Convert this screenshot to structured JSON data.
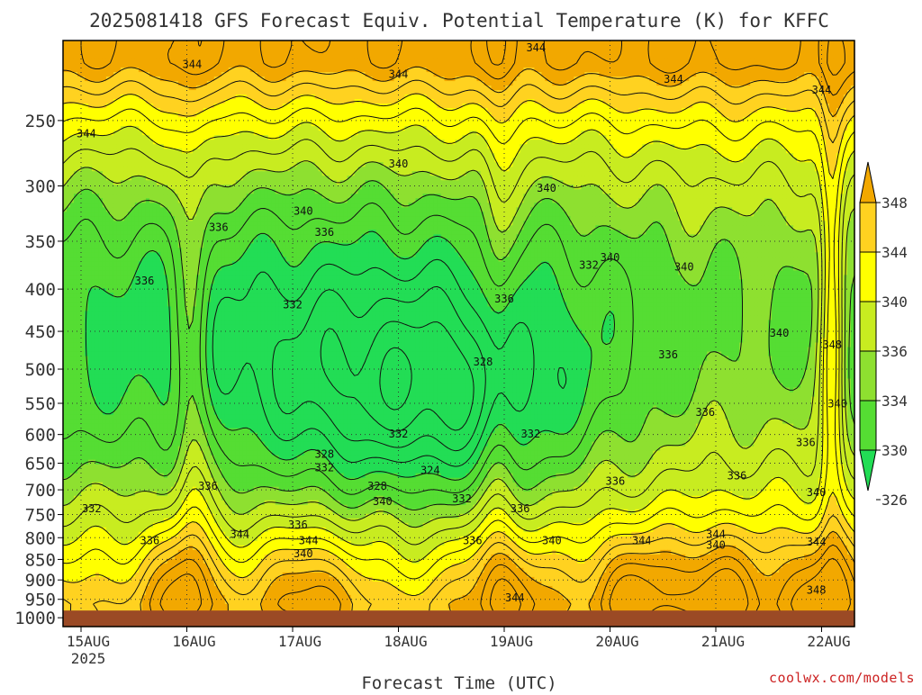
{
  "chart_data": {
    "type": "heatmap",
    "title": "2025081418 GFS Forecast Equiv. Potential Temperature (K) for KFFC",
    "xlabel": "Forecast Time (UTC)",
    "ylabel": "",
    "x_ticks": [
      "15AUG",
      "16AUG",
      "17AUG",
      "18AUG",
      "19AUG",
      "20AUG",
      "21AUG",
      "22AUG"
    ],
    "x_sub": "2025",
    "y_ticks": [
      250,
      300,
      350,
      400,
      450,
      500,
      550,
      600,
      650,
      700,
      750,
      800,
      850,
      900,
      950,
      1000
    ],
    "y_scale": "log-pressure",
    "ylim": [
      1025,
      200
    ],
    "grid": true,
    "colorbar": {
      "levels": [
        326,
        330,
        334,
        336,
        340,
        344,
        348
      ],
      "colors": [
        "#22dd55",
        "#55dd33",
        "#8ee030",
        "#c8ec20",
        "#ffff00",
        "#ffd220",
        "#f2a800"
      ]
    },
    "contour_labels": [
      {
        "x": 0.05,
        "p": 262,
        "v": "344"
      },
      {
        "x": 1.05,
        "p": 216,
        "v": "344"
      },
      {
        "x": 2.1,
        "p": 325,
        "v": "340"
      },
      {
        "x": 2.3,
        "p": 345,
        "v": "336"
      },
      {
        "x": 3.0,
        "p": 222,
        "v": "344"
      },
      {
        "x": 4.3,
        "p": 206,
        "v": "344"
      },
      {
        "x": 5.6,
        "p": 225,
        "v": "344"
      },
      {
        "x": 7.0,
        "p": 232,
        "v": "344"
      },
      {
        "x": 3.0,
        "p": 285,
        "v": "340"
      },
      {
        "x": 4.4,
        "p": 305,
        "v": "340"
      },
      {
        "x": 5.0,
        "p": 370,
        "v": "340"
      },
      {
        "x": 5.7,
        "p": 380,
        "v": "340"
      },
      {
        "x": 6.6,
        "p": 457,
        "v": "340"
      },
      {
        "x": 1.3,
        "p": 340,
        "v": "336"
      },
      {
        "x": 0.6,
        "p": 395,
        "v": "336"
      },
      {
        "x": 2.0,
        "p": 422,
        "v": "332"
      },
      {
        "x": 4.8,
        "p": 378,
        "v": "332"
      },
      {
        "x": 4.0,
        "p": 415,
        "v": "336"
      },
      {
        "x": 3.8,
        "p": 495,
        "v": "328"
      },
      {
        "x": 3.0,
        "p": 605,
        "v": "332"
      },
      {
        "x": 2.3,
        "p": 640,
        "v": "328"
      },
      {
        "x": 2.3,
        "p": 665,
        "v": "332"
      },
      {
        "x": 2.8,
        "p": 700,
        "v": "328"
      },
      {
        "x": 3.3,
        "p": 670,
        "v": "324"
      },
      {
        "x": 3.6,
        "p": 725,
        "v": "332"
      },
      {
        "x": 2.85,
        "p": 730,
        "v": "340"
      },
      {
        "x": 4.25,
        "p": 605,
        "v": "332"
      },
      {
        "x": 0.1,
        "p": 745,
        "v": "332"
      },
      {
        "x": 1.2,
        "p": 700,
        "v": "336"
      },
      {
        "x": 0.65,
        "p": 815,
        "v": "336"
      },
      {
        "x": 1.5,
        "p": 800,
        "v": "344"
      },
      {
        "x": 2.05,
        "p": 780,
        "v": "336"
      },
      {
        "x": 2.15,
        "p": 815,
        "v": "344"
      },
      {
        "x": 2.1,
        "p": 845,
        "v": "340"
      },
      {
        "x": 3.7,
        "p": 815,
        "v": "336"
      },
      {
        "x": 4.15,
        "p": 745,
        "v": "336"
      },
      {
        "x": 4.45,
        "p": 815,
        "v": "340"
      },
      {
        "x": 4.1,
        "p": 955,
        "v": "344"
      },
      {
        "x": 5.05,
        "p": 690,
        "v": "336"
      },
      {
        "x": 5.3,
        "p": 815,
        "v": "344"
      },
      {
        "x": 5.55,
        "p": 485,
        "v": "336"
      },
      {
        "x": 5.9,
        "p": 570,
        "v": "336"
      },
      {
        "x": 6.2,
        "p": 680,
        "v": "336"
      },
      {
        "x": 6.0,
        "p": 800,
        "v": "344"
      },
      {
        "x": 6.0,
        "p": 825,
        "v": "340"
      },
      {
        "x": 6.85,
        "p": 620,
        "v": "336"
      },
      {
        "x": 6.95,
        "p": 712,
        "v": "340"
      },
      {
        "x": 6.95,
        "p": 818,
        "v": "344"
      },
      {
        "x": 6.95,
        "p": 935,
        "v": "348"
      },
      {
        "x": 7.1,
        "p": 472,
        "v": "348"
      },
      {
        "x": 7.15,
        "p": 556,
        "v": "340"
      }
    ]
  },
  "credit": "coolwx.com/models"
}
